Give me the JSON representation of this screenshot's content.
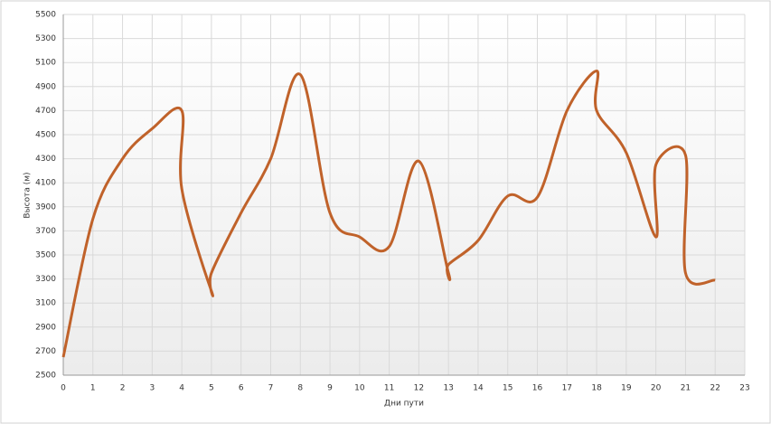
{
  "chart_data": {
    "type": "line",
    "x_label": "Дни пути",
    "y_label": "Высота (м)",
    "x": [
      0,
      1,
      2,
      3,
      4,
      4,
      5,
      5,
      6,
      7,
      8,
      9,
      10,
      11,
      12,
      13,
      13,
      14,
      15,
      16,
      17,
      18,
      18,
      19,
      20,
      20,
      21,
      21,
      22
    ],
    "series": [
      {
        "name": "Высота",
        "color": "#c0622a",
        "values": [
          2650,
          3800,
          4300,
          4550,
          4700,
          4050,
          3200,
          3350,
          3850,
          4300,
          5000,
          3850,
          3650,
          3570,
          4280,
          3350,
          3420,
          3620,
          3990,
          3980,
          4700,
          5030,
          4700,
          4350,
          3650,
          4250,
          4330,
          3350,
          3290
        ]
      }
    ],
    "xlim": [
      0,
      23
    ],
    "xticks": [
      0,
      1,
      2,
      3,
      4,
      5,
      6,
      7,
      8,
      9,
      10,
      11,
      12,
      13,
      14,
      15,
      16,
      17,
      18,
      19,
      20,
      21,
      22,
      23
    ],
    "ylim": [
      2500,
      5500
    ],
    "yticks": [
      2500,
      2700,
      2900,
      3100,
      3300,
      3500,
      3700,
      3900,
      4100,
      4300,
      4500,
      4700,
      4900,
      5100,
      5300,
      5500
    ],
    "grid": true
  }
}
